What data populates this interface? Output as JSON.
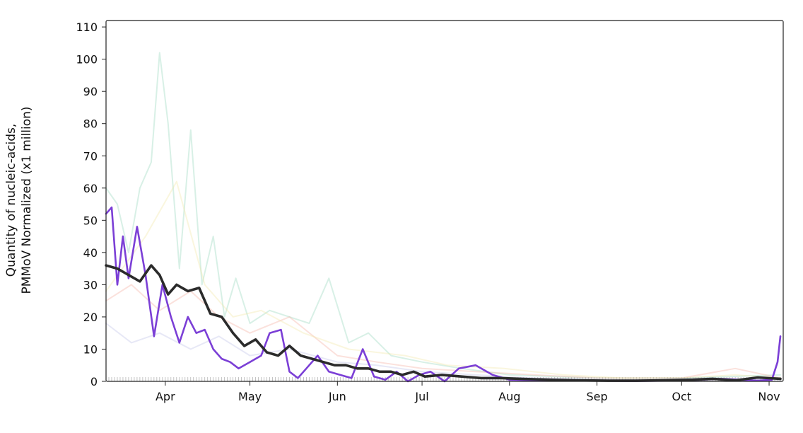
{
  "chart_data": {
    "type": "line",
    "ylabel_line1": "Quantity of nucleic-acids,",
    "ylabel_line2": "PMMoV Normalized (x1 million)",
    "ylim": [
      0,
      112
    ],
    "yticks": [
      0,
      10,
      20,
      30,
      40,
      50,
      60,
      70,
      80,
      90,
      100,
      110
    ],
    "xlim": [
      "2023-03-11",
      "2023-11-06"
    ],
    "xticks": [
      {
        "label": "Apr",
        "date": "2023-04-01"
      },
      {
        "label": "May",
        "date": "2023-05-01"
      },
      {
        "label": "Jun",
        "date": "2023-06-01"
      },
      {
        "label": "Jul",
        "date": "2023-07-01"
      },
      {
        "label": "Aug",
        "date": "2023-08-01"
      },
      {
        "label": "Sep",
        "date": "2023-09-01"
      },
      {
        "label": "Oct",
        "date": "2023-10-01"
      },
      {
        "label": "Nov",
        "date": "2023-11-01"
      }
    ],
    "grid": false,
    "legend": "none",
    "series": [
      {
        "color": "#2b2b2b",
        "highlight": true,
        "x": [
          "2023-03-11",
          "2023-03-15",
          "2023-03-19",
          "2023-03-23",
          "2023-03-27",
          "2023-03-30",
          "2023-04-02",
          "2023-04-05",
          "2023-04-09",
          "2023-04-13",
          "2023-04-17",
          "2023-04-21",
          "2023-04-25",
          "2023-04-29",
          "2023-05-03",
          "2023-05-07",
          "2023-05-11",
          "2023-05-15",
          "2023-05-19",
          "2023-05-23",
          "2023-05-27",
          "2023-05-31",
          "2023-06-04",
          "2023-06-08",
          "2023-06-12",
          "2023-06-16",
          "2023-06-20",
          "2023-06-24",
          "2023-06-28",
          "2023-07-02",
          "2023-07-08",
          "2023-07-15",
          "2023-07-22",
          "2023-07-29",
          "2023-08-05",
          "2023-08-15",
          "2023-08-25",
          "2023-09-05",
          "2023-09-15",
          "2023-09-25",
          "2023-10-05",
          "2023-10-12",
          "2023-10-20",
          "2023-10-28",
          "2023-11-05"
        ],
        "y": [
          36,
          35,
          33,
          31,
          36,
          33,
          27,
          30,
          28,
          29,
          21,
          20,
          15,
          11,
          13,
          9,
          8,
          11,
          8,
          7,
          6,
          5,
          5,
          4,
          4,
          3,
          3,
          2,
          3,
          1.5,
          2,
          1.5,
          1,
          1,
          0.8,
          0.5,
          0.3,
          0.2,
          0.2,
          0.3,
          0.5,
          0.8,
          0.3,
          1.2,
          0.8
        ]
      },
      {
        "color": "#7b3fd6",
        "highlight": true,
        "x": [
          "2023-03-11",
          "2023-03-13",
          "2023-03-15",
          "2023-03-17",
          "2023-03-19",
          "2023-03-22",
          "2023-03-25",
          "2023-03-28",
          "2023-03-31",
          "2023-04-03",
          "2023-04-06",
          "2023-04-09",
          "2023-04-12",
          "2023-04-15",
          "2023-04-18",
          "2023-04-21",
          "2023-04-24",
          "2023-04-27",
          "2023-05-01",
          "2023-05-05",
          "2023-05-08",
          "2023-05-12",
          "2023-05-15",
          "2023-05-18",
          "2023-05-21",
          "2023-05-25",
          "2023-05-29",
          "2023-06-02",
          "2023-06-06",
          "2023-06-10",
          "2023-06-14",
          "2023-06-18",
          "2023-06-22",
          "2023-06-26",
          "2023-06-30",
          "2023-07-04",
          "2023-07-09",
          "2023-07-14",
          "2023-07-20",
          "2023-07-26",
          "2023-08-01",
          "2023-08-10",
          "2023-08-20",
          "2023-09-01",
          "2023-09-15",
          "2023-10-01",
          "2023-10-15",
          "2023-10-28",
          "2023-11-02",
          "2023-11-04",
          "2023-11-05"
        ],
        "y": [
          52,
          54,
          30,
          45,
          32,
          48,
          33,
          14,
          30,
          20,
          12,
          20,
          15,
          16,
          10,
          7,
          6,
          4,
          6,
          8,
          15,
          16,
          3,
          1,
          4,
          8,
          3,
          2,
          1,
          10,
          1.5,
          0.5,
          3,
          0,
          2,
          3,
          0,
          4,
          5,
          2,
          0.5,
          0.3,
          0.2,
          0.2,
          0.1,
          0.2,
          0.8,
          0.2,
          0.5,
          6,
          14
        ]
      },
      {
        "color": "#8fd3b6",
        "highlight": false,
        "x": [
          "2023-03-11",
          "2023-03-15",
          "2023-03-19",
          "2023-03-23",
          "2023-03-27",
          "2023-03-30",
          "2023-04-02",
          "2023-04-06",
          "2023-04-10",
          "2023-04-14",
          "2023-04-18",
          "2023-04-22",
          "2023-04-26",
          "2023-05-01",
          "2023-05-08",
          "2023-05-15",
          "2023-05-22",
          "2023-05-29",
          "2023-06-05",
          "2023-06-12",
          "2023-06-20",
          "2023-07-01",
          "2023-07-15",
          "2023-08-01",
          "2023-09-01",
          "2023-10-01",
          "2023-11-05"
        ],
        "y": [
          60,
          55,
          40,
          60,
          68,
          102,
          80,
          35,
          78,
          30,
          45,
          20,
          32,
          18,
          22,
          20,
          18,
          32,
          12,
          15,
          8,
          6,
          4,
          2,
          1,
          1,
          2
        ]
      },
      {
        "color": "#f4a89c",
        "highlight": false,
        "x": [
          "2023-03-11",
          "2023-03-20",
          "2023-03-30",
          "2023-04-10",
          "2023-04-20",
          "2023-05-01",
          "2023-05-15",
          "2023-06-01",
          "2023-06-15",
          "2023-07-01",
          "2023-07-20",
          "2023-08-10",
          "2023-09-01",
          "2023-10-01",
          "2023-10-20",
          "2023-11-05"
        ],
        "y": [
          25,
          30,
          22,
          28,
          20,
          15,
          20,
          8,
          6,
          4,
          3,
          2,
          1,
          1,
          4,
          1
        ]
      },
      {
        "color": "#f2e6a0",
        "highlight": false,
        "x": [
          "2023-03-11",
          "2023-03-25",
          "2023-04-05",
          "2023-04-15",
          "2023-04-25",
          "2023-05-05",
          "2023-05-20",
          "2023-06-05",
          "2023-06-25",
          "2023-07-10",
          "2023-07-30",
          "2023-08-20",
          "2023-09-10",
          "2023-10-01",
          "2023-10-20",
          "2023-11-05"
        ],
        "y": [
          28,
          45,
          62,
          30,
          20,
          22,
          15,
          10,
          8,
          5,
          4,
          2,
          1,
          1,
          2,
          1
        ]
      },
      {
        "color": "#b9bce6",
        "highlight": false,
        "x": [
          "2023-03-11",
          "2023-03-20",
          "2023-03-30",
          "2023-04-10",
          "2023-04-20",
          "2023-05-01",
          "2023-05-15",
          "2023-06-01",
          "2023-06-15",
          "2023-07-01",
          "2023-07-20",
          "2023-08-10",
          "2023-09-10",
          "2023-10-10",
          "2023-11-05"
        ],
        "y": [
          18,
          12,
          15,
          10,
          14,
          8,
          10,
          6,
          5,
          3,
          2,
          1,
          0.5,
          1,
          0.5
        ]
      }
    ]
  }
}
